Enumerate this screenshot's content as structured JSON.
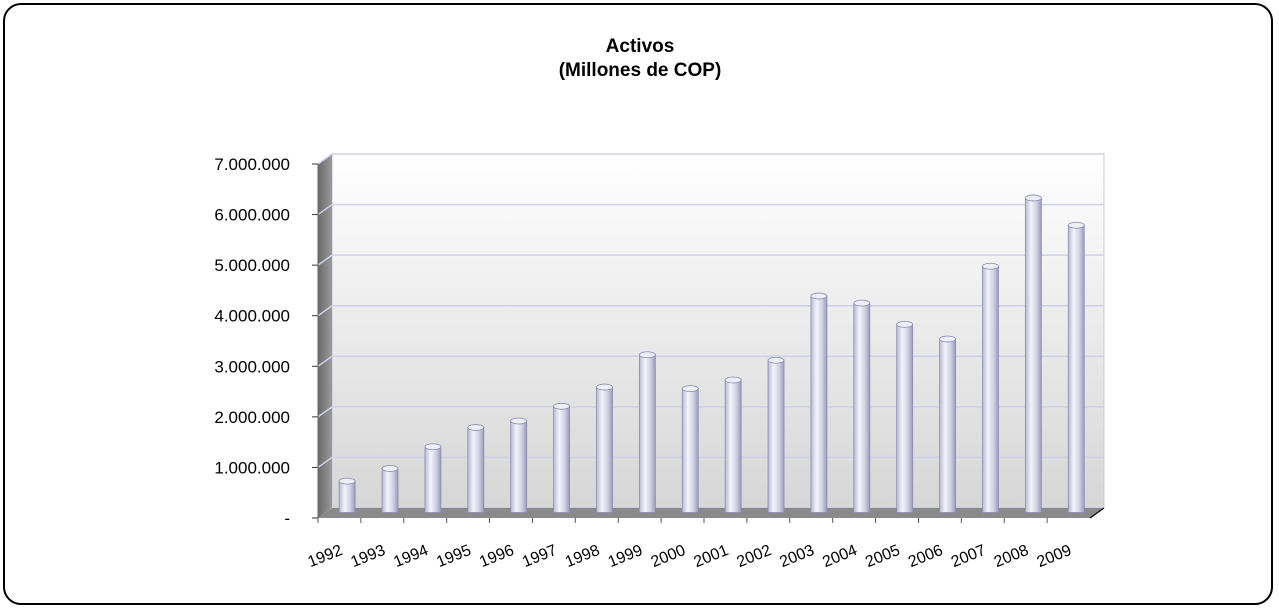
{
  "chart_data": {
    "type": "bar",
    "title": "Activos",
    "subtitle": "(Millones de COP)",
    "categories": [
      "1992",
      "1993",
      "1994",
      "1995",
      "1996",
      "1997",
      "1998",
      "1999",
      "2000",
      "2001",
      "2002",
      "2003",
      "2004",
      "2005",
      "2006",
      "2007",
      "2008",
      "2009"
    ],
    "values": [
      620000,
      870000,
      1300000,
      1680000,
      1810000,
      2100000,
      2480000,
      3120000,
      2450000,
      2620000,
      3010000,
      4280000,
      4140000,
      3720000,
      3430000,
      4870000,
      6220000,
      5680000
    ],
    "ylim": [
      0,
      7000000
    ],
    "yticks": [
      0,
      1000000,
      2000000,
      3000000,
      4000000,
      5000000,
      6000000,
      7000000
    ],
    "ytick_labels": [
      "-",
      "1.000.000",
      "2.000.000",
      "3.000.000",
      "4.000.000",
      "5.000.000",
      "6.000.000",
      "7.000.000"
    ],
    "grid": true,
    "legend": "none",
    "colors": {
      "bar": "#d6d6ea",
      "bar_edge": "#8c8cae",
      "wall_top": "#ffffff",
      "wall_bottom": "#d8d8d8",
      "floor": "#8a8a8a",
      "grid": "#d0d0e8"
    }
  }
}
